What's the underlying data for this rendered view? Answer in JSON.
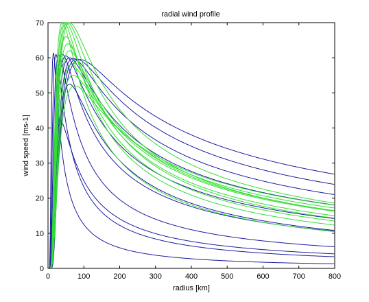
{
  "chart_data": {
    "type": "line",
    "title": "radial wind profile",
    "xlabel": "radius [km]",
    "ylabel": "wind speed [ms-1]",
    "xlim": [
      0,
      800
    ],
    "ylim": [
      0,
      70
    ],
    "xticks": [
      0,
      100,
      200,
      300,
      400,
      500,
      600,
      700,
      800
    ],
    "yticks": [
      0,
      10,
      20,
      30,
      40,
      50,
      60,
      70
    ],
    "grid": false,
    "legend": "none",
    "colors": {
      "blue": "#1a1aa0",
      "green": "#33dd33"
    },
    "series": [
      {
        "color": "blue",
        "rmax": 15,
        "vmax": 61.5,
        "b": 2.2
      },
      {
        "color": "blue",
        "rmax": 22,
        "vmax": 61.0,
        "b": 1.9
      },
      {
        "color": "blue",
        "rmax": 30,
        "vmax": 60.8,
        "b": 1.7
      },
      {
        "color": "blue",
        "rmax": 40,
        "vmax": 61.0,
        "b": 1.5
      },
      {
        "color": "blue",
        "rmax": 50,
        "vmax": 60.5,
        "b": 1.4
      },
      {
        "color": "blue",
        "rmax": 60,
        "vmax": 60.0,
        "b": 1.3
      },
      {
        "color": "blue",
        "rmax": 70,
        "vmax": 59.8,
        "b": 1.25
      },
      {
        "color": "blue",
        "rmax": 80,
        "vmax": 59.6,
        "b": 1.2
      },
      {
        "color": "blue",
        "rmax": 90,
        "vmax": 59.5,
        "b": 1.15
      },
      {
        "color": "blue",
        "rmax": 60,
        "vmax": 52.5,
        "b": 1.6
      },
      {
        "color": "blue",
        "rmax": 35,
        "vmax": 42.0,
        "b": 1.8
      },
      {
        "color": "green",
        "rmax": 40,
        "vmax": 70.0,
        "b": 1.6
      },
      {
        "color": "green",
        "rmax": 45,
        "vmax": 70.0,
        "b": 1.55
      },
      {
        "color": "green",
        "rmax": 50,
        "vmax": 70.0,
        "b": 1.5
      },
      {
        "color": "green",
        "rmax": 55,
        "vmax": 70.0,
        "b": 1.45
      },
      {
        "color": "green",
        "rmax": 60,
        "vmax": 70.0,
        "b": 1.4
      },
      {
        "color": "green",
        "rmax": 50,
        "vmax": 66.0,
        "b": 1.5
      },
      {
        "color": "green",
        "rmax": 55,
        "vmax": 64.0,
        "b": 1.45
      },
      {
        "color": "green",
        "rmax": 60,
        "vmax": 62.0,
        "b": 1.4
      },
      {
        "color": "green",
        "rmax": 65,
        "vmax": 58.0,
        "b": 1.4
      },
      {
        "color": "green",
        "rmax": 70,
        "vmax": 55.0,
        "b": 1.35
      },
      {
        "color": "green",
        "rmax": 75,
        "vmax": 52.0,
        "b": 1.3
      }
    ]
  }
}
